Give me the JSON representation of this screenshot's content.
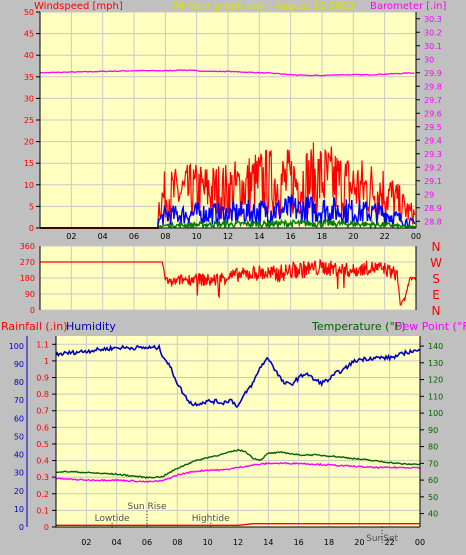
{
  "header": {
    "title": "24 hour graph day - August 12 2023"
  },
  "chart_data": [
    {
      "type": "line",
      "name": "wind-barometer",
      "left_axis_label": "Windspeed [mph]",
      "right_axis_label": "Barometer [.in]",
      "left_ticks": [
        "0",
        "5",
        "10",
        "15",
        "20",
        "25",
        "30",
        "35",
        "40",
        "45",
        "50"
      ],
      "right_ticks": [
        "28.8",
        "28.9",
        "29",
        "29.1",
        "29.2",
        "29.3",
        "29.4",
        "29.5",
        "29.6",
        "29.7",
        "29.8",
        "29.9",
        "30",
        "30.1",
        "30.2",
        "30.3"
      ],
      "x_ticks": [
        "02",
        "04",
        "06",
        "08",
        "10",
        "12",
        "14",
        "16",
        "18",
        "20",
        "22",
        "00"
      ],
      "ylim_left": [
        0,
        50
      ],
      "ylim_right": [
        28.75,
        30.35
      ],
      "xlim": [
        0,
        24
      ],
      "series": [
        {
          "key": "barometer",
          "axis": "right",
          "color": "#ff00ff",
          "x": [
            0,
            2,
            4,
            6,
            7,
            8,
            9,
            10,
            11,
            12,
            13,
            14,
            15,
            16,
            17,
            18,
            19,
            20,
            21,
            22,
            23,
            24
          ],
          "y": [
            29.9,
            29.905,
            29.91,
            29.915,
            29.915,
            29.915,
            29.92,
            29.915,
            29.91,
            29.91,
            29.905,
            29.9,
            29.895,
            29.885,
            29.88,
            29.88,
            29.885,
            29.885,
            29.885,
            29.89,
            29.895,
            29.9
          ]
        },
        {
          "key": "wind_gust",
          "axis": "left",
          "color": "#ff0000",
          "style": "noisy",
          "x": [
            0,
            7.5,
            7.6,
            8,
            10,
            12,
            14,
            16,
            18,
            20,
            22,
            23.5,
            24
          ],
          "y": [
            0,
            0,
            6,
            8,
            9,
            9,
            11,
            11,
            12,
            10,
            9,
            4,
            3
          ]
        },
        {
          "key": "wind_speed",
          "axis": "left",
          "color": "#0000ff",
          "style": "noisy",
          "x": [
            0,
            7.5,
            7.6,
            8,
            10,
            12,
            14,
            16,
            18,
            20,
            22,
            23.5,
            24
          ],
          "y": [
            0,
            0,
            2,
            3,
            3.5,
            3.5,
            4,
            4.5,
            4.5,
            4,
            3.5,
            1.5,
            1
          ]
        },
        {
          "key": "wind_avg",
          "axis": "left",
          "color": "#008000",
          "style": "noisy",
          "x": [
            0,
            7.5,
            7.6,
            8,
            10,
            12,
            14,
            16,
            18,
            20,
            22,
            23.5,
            24
          ],
          "y": [
            0,
            0,
            0.4,
            0.6,
            0.8,
            0.9,
            1,
            1.1,
            1.1,
            1,
            0.8,
            0.3,
            0.3
          ]
        }
      ]
    },
    {
      "type": "line",
      "name": "wind-direction",
      "left_ticks": [
        "0",
        "90",
        "180",
        "270",
        "360"
      ],
      "right_ticks": [
        "N",
        "E",
        "S",
        "W",
        "N"
      ],
      "ylim": [
        0,
        360
      ],
      "xlim": [
        0,
        24
      ],
      "series": [
        {
          "key": "direction",
          "color": "#ff0000",
          "x": [
            0,
            7.8,
            8,
            8.3,
            9,
            10,
            11,
            12,
            13,
            14,
            15,
            16,
            17,
            18,
            19,
            20,
            21,
            22,
            22.8,
            23,
            23.3,
            23.6,
            24
          ],
          "y": [
            270,
            270,
            180,
            150,
            170,
            175,
            165,
            190,
            200,
            210,
            200,
            220,
            230,
            240,
            230,
            220,
            240,
            230,
            200,
            30,
            60,
            180,
            170
          ],
          "noise": [
            0,
            0,
            20,
            25,
            30,
            35,
            40,
            40,
            40,
            45,
            50,
            50,
            50,
            45,
            45,
            40,
            40,
            40,
            40,
            10,
            10,
            10,
            10
          ]
        }
      ]
    },
    {
      "type": "line",
      "name": "temp-humidity-rain",
      "left_axis_label": "Rainfall (.in)",
      "left2_axis_label": "Humidity",
      "right_axis_label": "Temperature (°F)",
      "right2_axis_label": "Dew Point (°F)",
      "humidity_ticks": [
        "0",
        "10",
        "20",
        "30",
        "40",
        "50",
        "60",
        "70",
        "80",
        "90",
        "100"
      ],
      "rain_ticks": [
        "0",
        "0.1",
        "0.2",
        "0.3",
        "0.4",
        "0.5",
        "0.6",
        "0.7",
        "0.8",
        "0.9",
        "1",
        "1.1"
      ],
      "temp_ticks": [
        "40",
        "50",
        "60",
        "70",
        "80",
        "90",
        "100",
        "110",
        "120",
        "130",
        "140"
      ],
      "x_ticks": [
        "02",
        "04",
        "06",
        "08",
        "10",
        "12",
        "14",
        "16",
        "18",
        "20",
        "22",
        "00"
      ],
      "ylim_rain": [
        0,
        1.15
      ],
      "ylim_temp": [
        32,
        146
      ],
      "xlim": [
        0,
        24
      ],
      "annotations": [
        {
          "label": "Lowtide",
          "x": 3.7,
          "row": 2
        },
        {
          "label": "Sun Rise",
          "x": 6.0,
          "row": 1
        },
        {
          "label": "Hightide",
          "x": 10.2,
          "row": 2
        },
        {
          "label": "SunSet",
          "x": 21.5,
          "row": 3
        }
      ],
      "series": [
        {
          "key": "humidity",
          "axis": "temp",
          "color": "#0000c0",
          "x": [
            0,
            1,
            2,
            3,
            4,
            5,
            6,
            6.8,
            7,
            7.5,
            8,
            8.5,
            9,
            9.5,
            10,
            10.5,
            11,
            11.5,
            12,
            12.5,
            13,
            13.5,
            14,
            14.5,
            15,
            15.5,
            16,
            16.5,
            17,
            17.5,
            18,
            18.5,
            19,
            19.5,
            20,
            21,
            22,
            22.5,
            23,
            23.5,
            24
          ],
          "y": [
            135,
            136,
            137,
            138,
            139,
            139,
            139,
            139,
            135,
            128,
            118,
            110,
            105,
            106,
            107,
            107,
            106,
            108,
            104,
            112,
            118,
            128,
            133,
            125,
            118,
            117,
            121,
            124,
            120,
            118,
            120,
            124,
            126,
            130,
            132,
            133,
            133,
            134,
            136,
            137,
            137
          ]
        },
        {
          "key": "temperature",
          "axis": "temp",
          "color": "#006400",
          "x": [
            0,
            1,
            2,
            3,
            4,
            5,
            6,
            7,
            8,
            9,
            10,
            11,
            12,
            12.5,
            13,
            13.5,
            14,
            15,
            16,
            17,
            18,
            19,
            20,
            21,
            22,
            23,
            24
          ],
          "y": [
            65,
            65,
            64.5,
            64,
            63.5,
            62.5,
            61.5,
            62,
            67,
            71,
            73.5,
            75.5,
            78,
            77,
            73,
            72,
            76,
            76.5,
            75,
            75,
            74.5,
            73.5,
            72.5,
            71.5,
            70.5,
            69.5,
            69.5
          ]
        },
        {
          "key": "dew_point",
          "axis": "temp",
          "color": "#ff00ff",
          "x": [
            0,
            1,
            2,
            3,
            4,
            5,
            6,
            7,
            8,
            9,
            10,
            11,
            12,
            13,
            14,
            15,
            16,
            17,
            18,
            19,
            20,
            21,
            22,
            23,
            24
          ],
          "y": [
            61,
            60.5,
            60,
            60,
            60,
            59.5,
            59,
            59.5,
            63,
            65,
            66,
            66,
            67.5,
            69,
            70,
            70,
            70,
            69.5,
            69,
            68.5,
            68,
            67.5,
            67.5,
            67.5,
            67.5
          ]
        },
        {
          "key": "rainfall",
          "axis": "rain",
          "color": "#ff0000",
          "x": [
            0,
            12,
            13,
            24
          ],
          "y": [
            0.01,
            0.01,
            0.02,
            0.02
          ]
        }
      ]
    }
  ]
}
